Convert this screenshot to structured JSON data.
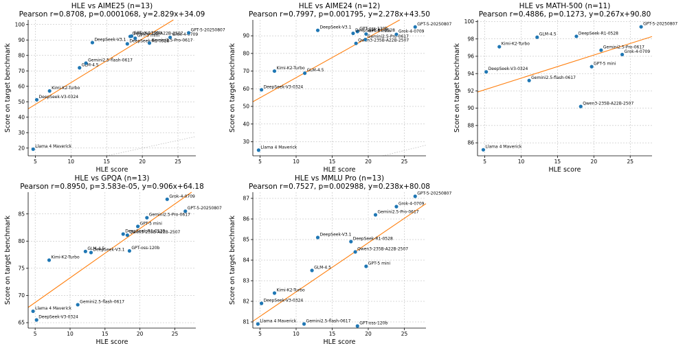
{
  "colors": {
    "point": "#1f77b4",
    "fit": "#ff7f0e",
    "diagonal": "#7f7f7f"
  },
  "chart_data": [
    {
      "type": "scatter",
      "title_line1": "HLE vs AIME25 (n=13)",
      "title_line2": "Pearson r=0.8708, p=0.0001068, y=2.829x+34.09",
      "xlabel": "HLE score",
      "ylabel": "Score on target benchmark",
      "xlim": [
        4,
        27.5
      ],
      "ylim": [
        15,
        103
      ],
      "xticks": [
        5,
        10,
        15,
        20,
        25
      ],
      "yticks": [
        20,
        30,
        40,
        50,
        60,
        70,
        80,
        90,
        100
      ],
      "fit": {
        "slope": 2.829,
        "intercept": 34.09
      },
      "points": [
        {
          "label": "Llama 4 Maverick",
          "x": 4.7,
          "y": 19.3
        },
        {
          "label": "DeepSeek-V3-0324",
          "x": 5.2,
          "y": 51.3
        },
        {
          "label": "Kimi-K2-Turbo",
          "x": 7.0,
          "y": 57.0
        },
        {
          "label": "GLM-4.5",
          "x": 11.2,
          "y": 72.0
        },
        {
          "label": "Gemini2.5-flash-0617",
          "x": 12.1,
          "y": 75.0
        },
        {
          "label": "DeepSeek-V3.1",
          "x": 13.0,
          "y": 88.3
        },
        {
          "label": "GPT-oss-120b",
          "x": 18.5,
          "y": 92.5
        },
        {
          "label": "DeepSeek-R1-0528",
          "x": 17.9,
          "y": 87.5
        },
        {
          "label": "GPT-5 mini",
          "x": 19.0,
          "y": 91.1
        },
        {
          "label": "Qwen3-235B-A22B-2507",
          "x": 18.3,
          "y": 92.3
        },
        {
          "label": "Gemini2.5-Pro-0617",
          "x": 21.0,
          "y": 88.0
        },
        {
          "label": "Grok-4-0709",
          "x": 23.9,
          "y": 91.7
        },
        {
          "label": "GPT-5-20250807",
          "x": 26.5,
          "y": 94.6
        }
      ]
    },
    {
      "type": "scatter",
      "title_line1": "HLE vs AIME24 (n=12)",
      "title_line2": "Pearson r=0.7997, p=0.001795, y=2.278x+43.50",
      "xlabel": "HLE score",
      "ylabel": "Score on target benchmark",
      "xlim": [
        4,
        28
      ],
      "ylim": [
        22,
        99
      ],
      "xticks": [
        5,
        10,
        15,
        20,
        25
      ],
      "yticks": [
        30,
        40,
        50,
        60,
        70,
        80,
        90
      ],
      "fit": {
        "slope": 2.278,
        "intercept": 43.5
      },
      "points": [
        {
          "label": "Llama 4 Maverick",
          "x": 4.8,
          "y": 25.2
        },
        {
          "label": "DeepSeek-V3-0324",
          "x": 5.2,
          "y": 59.4
        },
        {
          "label": "Kimi-K2-Turbo",
          "x": 7.0,
          "y": 70.0
        },
        {
          "label": "GLM-4.5",
          "x": 11.2,
          "y": 68.8
        },
        {
          "label": "DeepSeek-V3.1",
          "x": 13.0,
          "y": 93.1
        },
        {
          "label": "GPT-oss-120b",
          "x": 18.5,
          "y": 92.4
        },
        {
          "label": "DeepSeek-R1-0528",
          "x": 17.9,
          "y": 91.4
        },
        {
          "label": "Qwen3-235B-A22B-2507",
          "x": 18.3,
          "y": 85.7
        },
        {
          "label": "Gemini2.5-Pro-0617",
          "x": 19.6,
          "y": 87.9
        },
        {
          "label": "GPT-5 mini",
          "x": 19.7,
          "y": 91.0
        },
        {
          "label": "Grok-4-0709",
          "x": 23.9,
          "y": 90.8
        },
        {
          "label": "GPT-5-20250807",
          "x": 26.5,
          "y": 95.0
        }
      ]
    },
    {
      "type": "scatter",
      "title_line1": "HLE vs MATH-500 (n=11)",
      "title_line2": "Pearson r=0.4886, p=0.1273, y=0.267x+90.80",
      "xlabel": "HLE score",
      "ylabel": "Score on target benchmark",
      "xlim": [
        4,
        28
      ],
      "ylim": [
        84.5,
        100.2
      ],
      "xticks": [
        5,
        10,
        15,
        20,
        25
      ],
      "yticks": [
        86,
        88,
        90,
        92,
        94,
        96,
        98,
        100
      ],
      "fit": {
        "slope": 0.267,
        "intercept": 90.8
      },
      "points": [
        {
          "label": "Llama 4 Maverick",
          "x": 4.8,
          "y": 85.2
        },
        {
          "label": "DeepSeek-V3-0324",
          "x": 5.2,
          "y": 94.2
        },
        {
          "label": "Kimi-K2-Turbo",
          "x": 7.0,
          "y": 97.1
        },
        {
          "label": "Gemini2.5-flash-0617",
          "x": 11.1,
          "y": 93.2
        },
        {
          "label": "GLM-4.5",
          "x": 12.2,
          "y": 98.2
        },
        {
          "label": "DeepSeek-R1-0528",
          "x": 17.6,
          "y": 98.3
        },
        {
          "label": "Qwen3-235B-A22B-2507",
          "x": 18.2,
          "y": 90.2
        },
        {
          "label": "GPT-5 mini",
          "x": 19.7,
          "y": 94.8
        },
        {
          "label": "Gemini2.5-Pro-0617",
          "x": 21.0,
          "y": 96.7
        },
        {
          "label": "Grok-4-0709",
          "x": 23.9,
          "y": 96.2
        },
        {
          "label": "GPT-5-20250807",
          "x": 26.5,
          "y": 99.4
        }
      ]
    },
    {
      "type": "scatter",
      "title_line1": "HLE vs GPQA (n=13)",
      "title_line2": "Pearson r=0.8950, p=3.583e-05, y=0.906x+64.18",
      "xlabel": "HLE score",
      "ylabel": "Score on target benchmark",
      "xlim": [
        4,
        28
      ],
      "ylim": [
        64,
        89
      ],
      "xticks": [
        5,
        10,
        15,
        20,
        25
      ],
      "yticks": [
        65,
        70,
        75,
        80,
        85
      ],
      "fit": {
        "slope": 0.906,
        "intercept": 64.18
      },
      "points": [
        {
          "label": "Llama 4 Maverick",
          "x": 4.7,
          "y": 67.1
        },
        {
          "label": "DeepSeek-V3-0324",
          "x": 5.2,
          "y": 65.5
        },
        {
          "label": "Kimi-K2-Turbo",
          "x": 7.0,
          "y": 76.5
        },
        {
          "label": "Gemini2.5-flash-0617",
          "x": 11.1,
          "y": 68.3
        },
        {
          "label": "GLM-4.5",
          "x": 12.2,
          "y": 78.1
        },
        {
          "label": "DeepSeek-V3.1",
          "x": 13.0,
          "y": 77.9
        },
        {
          "label": "GPT-oss-120b",
          "x": 18.5,
          "y": 78.2
        },
        {
          "label": "DeepSeek-R1-0528",
          "x": 17.6,
          "y": 81.3
        },
        {
          "label": "Qwen3-235B-A22B-2507",
          "x": 18.2,
          "y": 81.1
        },
        {
          "label": "GPT-5 mini",
          "x": 19.7,
          "y": 82.7
        },
        {
          "label": "Gemini2.5-Pro-0617",
          "x": 21.0,
          "y": 84.3
        },
        {
          "label": "Grok-4-0709",
          "x": 23.9,
          "y": 87.7
        },
        {
          "label": "GPT-5-20250807",
          "x": 26.5,
          "y": 85.5
        }
      ]
    },
    {
      "type": "scatter",
      "title_line1": "HLE vs MMLU Pro (n=13)",
      "title_line2": "Pearson r=0.7527, p=0.002988, y=0.238x+80.08",
      "xlabel": "HLE score",
      "ylabel": "Score on target benchmark",
      "xlim": [
        4,
        28
      ],
      "ylim": [
        80.7,
        87.3
      ],
      "xticks": [
        5,
        10,
        15,
        20,
        25
      ],
      "yticks": [
        81,
        82,
        83,
        84,
        85,
        86,
        87
      ],
      "fit": {
        "slope": 0.238,
        "intercept": 80.08
      },
      "points": [
        {
          "label": "Llama 4 Maverick",
          "x": 4.7,
          "y": 80.9
        },
        {
          "label": "DeepSeek-V3-0324",
          "x": 5.2,
          "y": 81.9
        },
        {
          "label": "Kimi-K2-Turbo",
          "x": 7.0,
          "y": 82.4
        },
        {
          "label": "Gemini2.5-flash-0617",
          "x": 11.1,
          "y": 80.9
        },
        {
          "label": "GLM-4.5",
          "x": 12.2,
          "y": 83.5
        },
        {
          "label": "DeepSeek-V3.1",
          "x": 13.0,
          "y": 85.1
        },
        {
          "label": "DeepSeek-R1-0528",
          "x": 17.6,
          "y": 84.9
        },
        {
          "label": "Qwen3-235B-A22B-2507",
          "x": 18.2,
          "y": 84.4
        },
        {
          "label": "GPT-oss-120b",
          "x": 18.5,
          "y": 80.8
        },
        {
          "label": "GPT-5 mini",
          "x": 19.7,
          "y": 83.7
        },
        {
          "label": "Gemini2.5-Pro-0617",
          "x": 21.0,
          "y": 86.2
        },
        {
          "label": "Grok-4-0709",
          "x": 23.9,
          "y": 86.6
        },
        {
          "label": "GPT-5-20250807",
          "x": 26.5,
          "y": 87.1
        }
      ]
    }
  ]
}
